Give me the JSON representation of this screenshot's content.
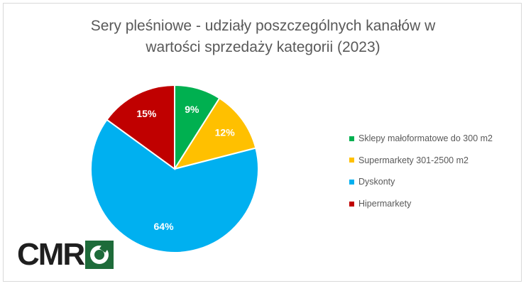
{
  "title_lines": [
    "Sery pleśniowe - udziały poszczególnych kanałów w",
    "wartości sprzedaży kategorii (2023)"
  ],
  "logo": {
    "text": "CMR"
  },
  "colors": {
    "sklepy": "#00b050",
    "supermarkety": "#ffc000",
    "dyskonty": "#00b0f0",
    "hipermarkety": "#c00000"
  },
  "chart_data": {
    "type": "pie",
    "title": "Sery pleśniowe - udziały poszczególnych kanałów w wartości sprzedaży kategorii (2023)",
    "legend_position": "right",
    "slices": [
      {
        "label": "Sklepy małoformatowe do 300 m2",
        "value": 9,
        "display": "9%",
        "color": "#00b050"
      },
      {
        "label": "Supermarkety 301-2500 m2",
        "value": 12,
        "display": "12%",
        "color": "#ffc000"
      },
      {
        "label": "Dyskonty",
        "value": 64,
        "display": "64%",
        "color": "#00b0f0"
      },
      {
        "label": "Hipermarkety",
        "value": 15,
        "display": "15%",
        "color": "#c00000"
      }
    ]
  }
}
